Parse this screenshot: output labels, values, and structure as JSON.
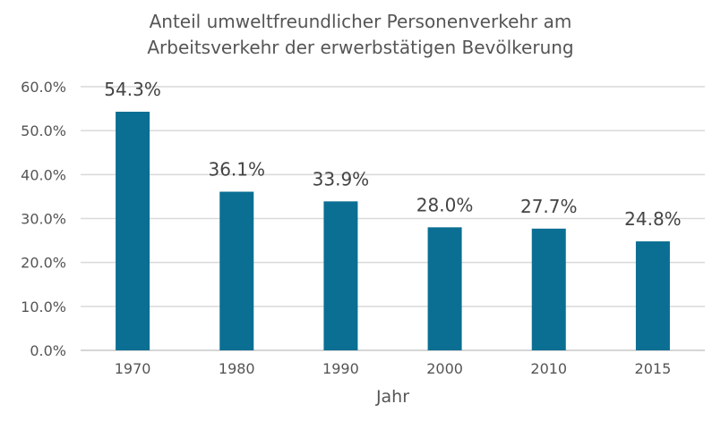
{
  "chart_data": {
    "type": "bar",
    "title_line1": "Anteil umweltfreundlicher Personenverkehr am",
    "title_line2": "Arbeitsverkehr der erwerbstätigen Bevölkerung",
    "xlabel": "Jahr",
    "ylabel": "",
    "categories": [
      "1970",
      "1980",
      "1990",
      "2000",
      "2010",
      "2015"
    ],
    "values": [
      54.3,
      36.1,
      33.9,
      28.0,
      27.7,
      24.8
    ],
    "data_labels": [
      "54.3%",
      "36.1%",
      "33.9%",
      "28.0%",
      "27.7%",
      "24.8%"
    ],
    "ylim": [
      0,
      60
    ],
    "yticks": [
      0,
      10,
      20,
      30,
      40,
      50,
      60
    ],
    "ytick_labels": [
      "0.0%",
      "10.0%",
      "20.0%",
      "30.0%",
      "40.0%",
      "50.0%",
      "60.0%"
    ],
    "grid": true,
    "legend": "none",
    "bar_color": "#0a6f93"
  }
}
